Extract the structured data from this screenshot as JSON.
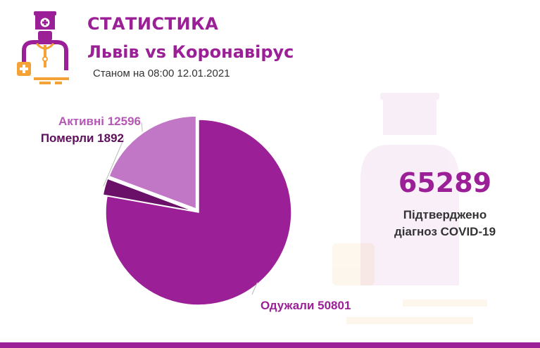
{
  "header": {
    "title": "СТАТИСТИКА",
    "subtitle": "Львів vs Коронавірус",
    "date_text": "Станом на 08:00 12.01.2021"
  },
  "summary": {
    "total_value": "65289",
    "total_label_line1": "Підтверджено",
    "total_label_line2": "діагноз COVID-19"
  },
  "colors": {
    "accent": "#9b1f97",
    "recovered": "#9b1f97",
    "died": "#6b1069",
    "active": "#c276c6",
    "logo_orange": "#f4a235"
  },
  "chart_data": {
    "type": "pie",
    "title": "",
    "slices": [
      {
        "name": "Активні",
        "value": 12596,
        "label": "Активні 12596",
        "color": "#c276c6",
        "label_color": "#b457b5"
      },
      {
        "name": "Померли",
        "value": 1892,
        "label": "Померли 1892",
        "color": "#6b1069",
        "label_color": "#5e0f5c"
      },
      {
        "name": "Одужали",
        "value": 50801,
        "label": "Одужали 50801",
        "color": "#9b1f97",
        "label_color": "#9b1f97"
      }
    ]
  }
}
